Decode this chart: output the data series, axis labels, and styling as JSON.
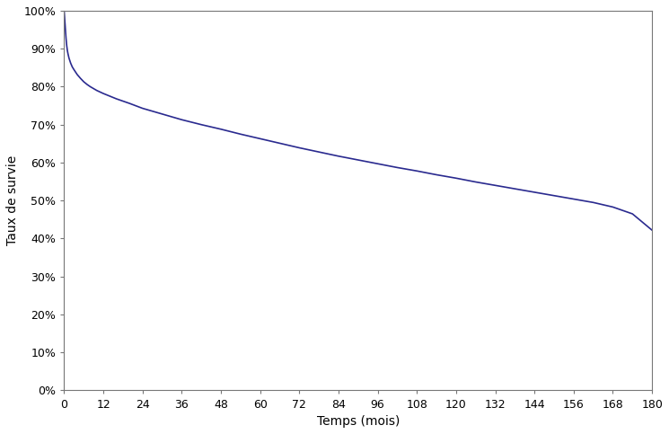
{
  "title": "",
  "xlabel": "Temps (mois)",
  "ylabel": "Taux de survie",
  "xlim": [
    0,
    180
  ],
  "ylim": [
    0,
    1.0
  ],
  "xticks": [
    0,
    12,
    24,
    36,
    48,
    60,
    72,
    84,
    96,
    108,
    120,
    132,
    144,
    156,
    168,
    180
  ],
  "yticks": [
    0.0,
    0.1,
    0.2,
    0.3,
    0.4,
    0.5,
    0.6,
    0.7,
    0.8,
    0.9,
    1.0
  ],
  "line_color": "#2a2a8f",
  "line_width": 1.2,
  "background_color": "#ffffff",
  "spine_color": "#777777",
  "curve_x": [
    0,
    0.02,
    0.05,
    0.1,
    0.15,
    0.2,
    0.3,
    0.4,
    0.5,
    0.6,
    0.8,
    1.0,
    1.2,
    1.5,
    2.0,
    2.5,
    3.0,
    4.0,
    5.0,
    6.0,
    7.0,
    8.0,
    9.0,
    10.0,
    11.0,
    12.0,
    14.0,
    16.0,
    18.0,
    20.0,
    24.0,
    28.0,
    30.0,
    36.0,
    42.0,
    48.0,
    54.0,
    60.0,
    66.0,
    72.0,
    78.0,
    84.0,
    90.0,
    96.0,
    102.0,
    108.0,
    114.0,
    120.0,
    126.0,
    132.0,
    138.0,
    144.0,
    150.0,
    156.0,
    162.0,
    168.0,
    174.0,
    180.0
  ],
  "curve_y": [
    1.0,
    0.998,
    0.994,
    0.988,
    0.982,
    0.975,
    0.963,
    0.95,
    0.938,
    0.926,
    0.908,
    0.895,
    0.886,
    0.875,
    0.862,
    0.852,
    0.845,
    0.832,
    0.822,
    0.813,
    0.806,
    0.8,
    0.795,
    0.79,
    0.786,
    0.782,
    0.775,
    0.768,
    0.762,
    0.756,
    0.743,
    0.733,
    0.728,
    0.713,
    0.7,
    0.688,
    0.675,
    0.663,
    0.651,
    0.639,
    0.628,
    0.617,
    0.607,
    0.597,
    0.587,
    0.578,
    0.568,
    0.559,
    0.549,
    0.54,
    0.531,
    0.522,
    0.513,
    0.504,
    0.495,
    0.483,
    0.465,
    0.422
  ],
  "xlabel_fontsize": 10,
  "ylabel_fontsize": 10,
  "tick_fontsize": 9
}
